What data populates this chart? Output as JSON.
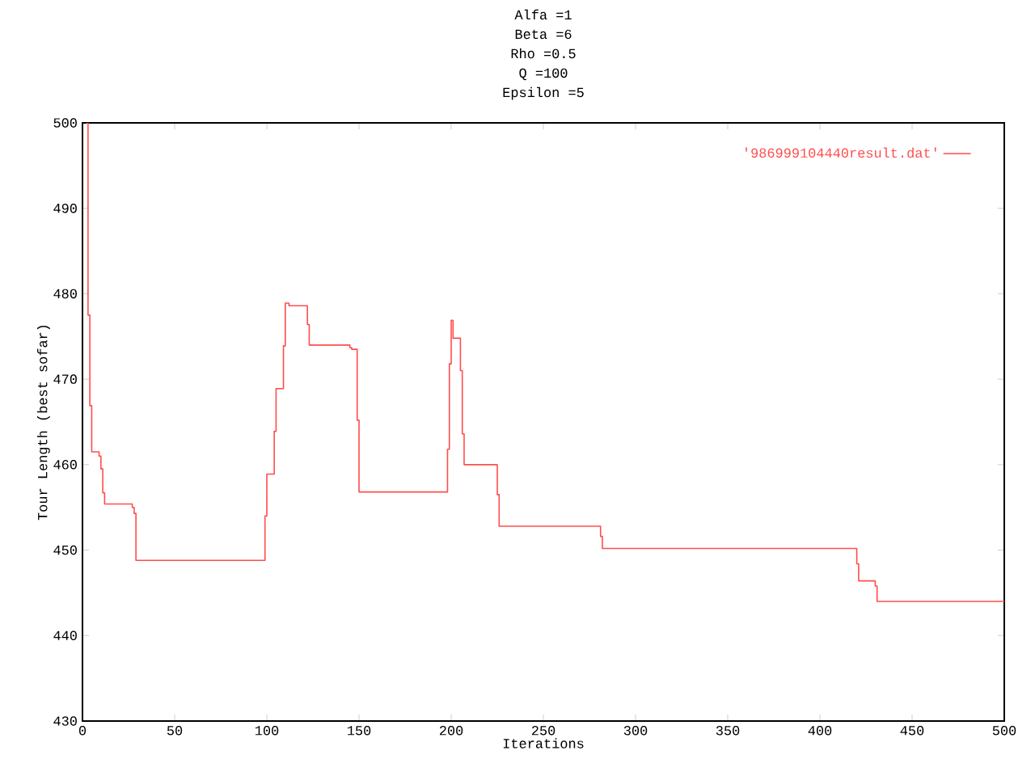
{
  "chart_data": {
    "type": "step",
    "title": "Alfa =1",
    "annotations": [
      "Beta =6",
      "Rho =0.5",
      "Q =100",
      "Epsilon =5"
    ],
    "xlabel": "Iterations",
    "ylabel": "Tour Length (best sofar)",
    "x": [
      2,
      3,
      4,
      5,
      9,
      10,
      11,
      12,
      27,
      28,
      29,
      99,
      100,
      104,
      105,
      109,
      110,
      112,
      122,
      123,
      145,
      146,
      149,
      150,
      198,
      199,
      200,
      201,
      205,
      206,
      207,
      225,
      226,
      281,
      282,
      420,
      421,
      430,
      431,
      500
    ],
    "series": [
      {
        "name": "'986999104440result.dat'",
        "color": "#ff4d4d",
        "values": [
          500,
          477.5,
          466.9,
          461.5,
          461,
          459.5,
          456.7,
          455.4,
          455,
          454.3,
          448.8,
          454,
          458.9,
          463.9,
          468.9,
          473.9,
          478.9,
          478.6,
          476.4,
          474,
          473.7,
          473.5,
          465.2,
          456.8,
          461.8,
          471.8,
          476.9,
          474.8,
          471,
          463.6,
          460,
          456.5,
          452.8,
          451.6,
          450.2,
          448.4,
          446.4,
          445.8,
          444,
          444
        ]
      }
    ],
    "xlim": [
      0,
      500
    ],
    "ylim": [
      430,
      500
    ],
    "xticks": [
      0,
      50,
      100,
      150,
      200,
      250,
      300,
      350,
      400,
      450,
      500
    ],
    "yticks": [
      430,
      440,
      450,
      460,
      470,
      480,
      490,
      500
    ],
    "grid": false,
    "legend": "top right",
    "marker": "none",
    "line_style": "solid"
  }
}
